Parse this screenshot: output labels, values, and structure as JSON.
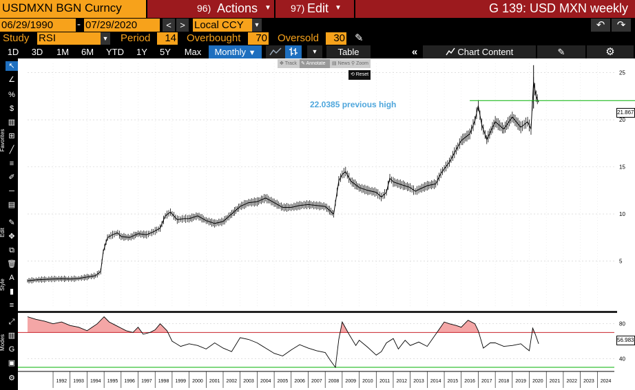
{
  "header": {
    "security": "USDMXN BGN Curncy",
    "actions_num": "96)",
    "actions_label": "Actions",
    "edit_num": "97)",
    "edit_label": "Edit",
    "title": "G 139: USD MXN weekly",
    "start_date": "06/29/1990",
    "end_date": "07/29/2020",
    "currency": "Local CCY",
    "undo_icon": "undo-arrow-icon",
    "redo_icon": "redo-arrow-icon"
  },
  "study_bar": {
    "study_label": "Study",
    "study_value": "RSI",
    "period_label": "Period",
    "period_value": "14",
    "overbought_label": "Overbought",
    "overbought_value": "70",
    "oversold_label": "Oversold",
    "oversold_value": "30"
  },
  "toolbar": {
    "ranges": [
      "1D",
      "3D",
      "1M",
      "6M",
      "YTD",
      "1Y",
      "5Y",
      "Max"
    ],
    "frequency": "Monthly",
    "table_label": "Table",
    "chart_content_label": "Chart Content",
    "popup": {
      "track": "Track",
      "annotate": "Annotate",
      "news": "News",
      "zoom": "Zoom",
      "reset": "Reset"
    }
  },
  "side_labels": {
    "favorites": "Favorites",
    "edit": "Edit",
    "style": "Style",
    "modes": "Modes"
  },
  "colors": {
    "orange": "#f7a21b",
    "red_bar": "#9c1a1e",
    "selected_blue": "#1e6fbf",
    "annotation_blue": "#4ea6dc",
    "hline_green": "#00b000",
    "overbought_red": "#c8202a",
    "oversold_green": "#00b000",
    "overbought_fill": "#f4a6a6"
  },
  "chart_data": [
    {
      "type": "line",
      "x": [
        1990.5,
        1991.0,
        1991.5,
        1992.0,
        1992.5,
        1993.0,
        1993.5,
        1994.0,
        1994.5,
        1994.8,
        1994.95,
        1995.2,
        1995.5,
        1995.8,
        1996.0,
        1996.5,
        1997.0,
        1997.5,
        1997.9,
        1998.3,
        1998.6,
        1998.9,
        1999.3,
        1999.7,
        2000.0,
        2000.5,
        2001.0,
        2001.5,
        2002.0,
        2002.5,
        2003.0,
        2003.5,
        2004.0,
        2004.5,
        2005.0,
        2005.5,
        2006.0,
        2006.5,
        2007.0,
        2007.5,
        2008.0,
        2008.5,
        2008.8,
        2009.0,
        2009.2,
        2009.5,
        2010.0,
        2010.5,
        2011.0,
        2011.3,
        2011.6,
        2011.8,
        2012.0,
        2012.5,
        2013.0,
        2013.3,
        2013.5,
        2014.0,
        2014.5,
        2014.8,
        2015.0,
        2015.3,
        2015.6,
        2016.0,
        2016.5,
        2016.8,
        2017.0,
        2017.2,
        2017.5,
        2018.0,
        2018.5,
        2019.0,
        2019.5,
        2019.9,
        2020.1,
        2020.25,
        2020.4,
        2020.55
      ],
      "y": [
        2.9,
        3.0,
        3.05,
        3.1,
        3.12,
        3.1,
        3.15,
        3.3,
        3.45,
        3.9,
        6.0,
        7.5,
        7.8,
        8.0,
        7.6,
        7.5,
        7.9,
        7.8,
        8.1,
        8.5,
        9.8,
        10.2,
        9.4,
        9.5,
        9.5,
        9.8,
        9.3,
        9.0,
        9.2,
        10.0,
        10.8,
        11.2,
        11.3,
        11.7,
        11.2,
        10.7,
        10.7,
        10.9,
        11.0,
        10.9,
        10.8,
        10.0,
        13.5,
        14.2,
        14.5,
        13.5,
        12.8,
        12.5,
        12.3,
        11.8,
        12.3,
        13.8,
        13.4,
        13.1,
        12.8,
        12.4,
        12.6,
        13.0,
        13.2,
        14.3,
        14.8,
        15.5,
        16.5,
        17.8,
        18.5,
        19.9,
        21.5,
        19.5,
        17.9,
        19.8,
        19.0,
        20.3,
        19.2,
        19.8,
        19.0,
        24.0,
        22.5,
        21.87
      ],
      "ylim": [
        0,
        26
      ],
      "xlim": [
        1990.5,
        2025.0
      ],
      "y_ticks": [
        "5",
        "10",
        "15",
        "20",
        "25"
      ],
      "x_ticks": [
        "1992",
        "1993",
        "1994",
        "1995",
        "1996",
        "1997",
        "1998",
        "1999",
        "2000",
        "2001",
        "2002",
        "2003",
        "2004",
        "2005",
        "2006",
        "2007",
        "2008",
        "2009",
        "2010",
        "2011",
        "2012",
        "2013",
        "2014",
        "2015",
        "2016",
        "2017",
        "2018",
        "2019",
        "2020",
        "2021",
        "2022",
        "2023",
        "2024"
      ],
      "hline": 22.0385,
      "last_value": "21.8675",
      "annotation": "22.0385 previous high"
    },
    {
      "type": "line",
      "x": [
        1990.5,
        1991.0,
        1991.5,
        1992.0,
        1992.5,
        1993.0,
        1993.5,
        1994.0,
        1994.3,
        1994.6,
        1995.0,
        1995.3,
        1995.7,
        1996.0,
        1996.3,
        1996.7,
        1997.0,
        1997.3,
        1997.7,
        1998.0,
        1998.3,
        1998.7,
        1999.0,
        1999.5,
        2000.0,
        2000.5,
        2001.0,
        2001.5,
        2002.0,
        2002.5,
        2003.0,
        2003.5,
        2004.0,
        2004.5,
        2005.0,
        2005.5,
        2006.0,
        2006.5,
        2007.0,
        2007.5,
        2008.0,
        2008.3,
        2008.6,
        2008.8,
        2009.0,
        2009.4,
        2009.8,
        2010.0,
        2010.5,
        2011.0,
        2011.3,
        2011.6,
        2012.0,
        2012.3,
        2012.7,
        2013.0,
        2013.5,
        2014.0,
        2014.5,
        2015.0,
        2015.3,
        2015.7,
        2016.0,
        2016.4,
        2016.8,
        2017.0,
        2017.3,
        2017.7,
        2018.0,
        2018.5,
        2019.0,
        2019.5,
        2019.8,
        2020.0,
        2020.2,
        2020.35,
        2020.55
      ],
      "y": [
        88,
        85,
        83,
        80,
        82,
        78,
        76,
        72,
        76,
        80,
        88,
        82,
        78,
        75,
        72,
        70,
        76,
        68,
        70,
        73,
        80,
        72,
        60,
        54,
        57,
        55,
        51,
        58,
        52,
        48,
        64,
        62,
        58,
        52,
        46,
        43,
        50,
        56,
        52,
        49,
        47,
        38,
        30,
        62,
        82,
        68,
        55,
        61,
        53,
        44,
        48,
        58,
        63,
        51,
        61,
        55,
        59,
        54,
        68,
        82,
        80,
        78,
        76,
        84,
        80,
        72,
        52,
        58,
        58,
        54,
        55,
        57,
        52,
        49,
        75,
        68,
        56.98
      ],
      "ylim": [
        30,
        90
      ],
      "y_ticks": [
        "40",
        "80"
      ],
      "overbought": 70,
      "oversold": 30,
      "last_value": "56.9838"
    }
  ]
}
